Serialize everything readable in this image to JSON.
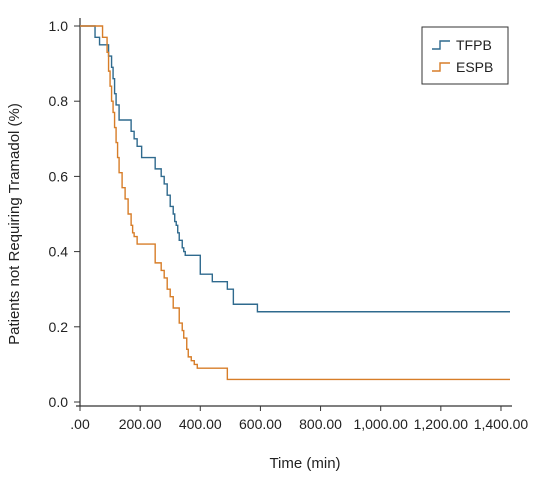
{
  "chart_data": {
    "type": "line",
    "step": true,
    "xlabel": "Time (min)",
    "ylabel": "Patients not Requiring Tramadol (%)",
    "xlim": [
      0,
      1430
    ],
    "ylim": [
      0,
      1.0
    ],
    "xticks": [
      0,
      200,
      400,
      600,
      800,
      1000,
      1200,
      1400
    ],
    "xtick_labels": [
      ".00",
      "200.00",
      "400.00",
      "600.00",
      "800.00",
      "1,000.00",
      "1,200.00",
      "1,400.00"
    ],
    "yticks": [
      0,
      0.2,
      0.4,
      0.6,
      0.8,
      1.0
    ],
    "ytick_labels": [
      "0.0",
      "0.2",
      "0.4",
      "0.6",
      "0.8",
      "1.0"
    ],
    "legend_position": "top-right",
    "series": [
      {
        "name": "TFPB",
        "color": "#2f6a8e",
        "x": [
          0,
          50,
          65,
          95,
          105,
          110,
          115,
          120,
          130,
          170,
          180,
          190,
          205,
          250,
          270,
          280,
          290,
          300,
          310,
          315,
          320,
          325,
          330,
          340,
          345,
          350,
          360,
          400,
          420,
          440,
          490,
          510,
          590,
          1430
        ],
        "y": [
          1.0,
          0.97,
          0.95,
          0.92,
          0.89,
          0.86,
          0.82,
          0.79,
          0.75,
          0.72,
          0.7,
          0.68,
          0.65,
          0.62,
          0.6,
          0.58,
          0.55,
          0.52,
          0.5,
          0.48,
          0.47,
          0.45,
          0.43,
          0.41,
          0.4,
          0.39,
          0.39,
          0.34,
          0.34,
          0.32,
          0.3,
          0.26,
          0.24,
          0.24
        ]
      },
      {
        "name": "ESPB",
        "color": "#d77d28",
        "x": [
          0,
          75,
          90,
          95,
          100,
          105,
          110,
          115,
          120,
          125,
          130,
          140,
          150,
          160,
          170,
          175,
          180,
          190,
          200,
          250,
          270,
          280,
          290,
          300,
          310,
          330,
          340,
          345,
          355,
          360,
          370,
          380,
          390,
          400,
          490,
          1430
        ],
        "y": [
          1.0,
          0.97,
          0.93,
          0.88,
          0.84,
          0.8,
          0.77,
          0.73,
          0.69,
          0.65,
          0.61,
          0.57,
          0.54,
          0.5,
          0.47,
          0.45,
          0.44,
          0.42,
          0.42,
          0.37,
          0.35,
          0.33,
          0.3,
          0.28,
          0.25,
          0.21,
          0.19,
          0.17,
          0.14,
          0.12,
          0.11,
          0.1,
          0.09,
          0.09,
          0.06,
          0.06
        ]
      }
    ]
  }
}
